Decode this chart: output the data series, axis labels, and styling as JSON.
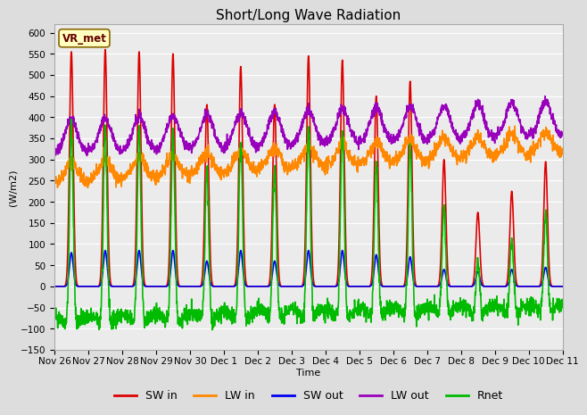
{
  "title": "Short/Long Wave Radiation",
  "ylabel": "(W/m2)",
  "xlabel": "Time",
  "ylim": [
    -150,
    620
  ],
  "yticks": [
    -150,
    -100,
    -50,
    0,
    50,
    100,
    150,
    200,
    250,
    300,
    350,
    400,
    450,
    500,
    550,
    600
  ],
  "xtick_labels": [
    "Nov 26",
    "Nov 27",
    "Nov 28",
    "Nov 29",
    "Nov 30",
    "Dec 1",
    "Dec 2",
    "Dec 3",
    "Dec 4",
    "Dec 5",
    "Dec 6",
    "Dec 7",
    "Dec 8",
    "Dec 9",
    "Dec 10",
    "Dec 11"
  ],
  "station_label": "VR_met",
  "series": {
    "SW_in": {
      "color": "#dd0000",
      "label": "SW in",
      "lw": 1.2
    },
    "LW_in": {
      "color": "#ff8800",
      "label": "LW in",
      "lw": 1.2
    },
    "SW_out": {
      "color": "#0000ee",
      "label": "SW out",
      "lw": 1.2
    },
    "LW_out": {
      "color": "#9900bb",
      "label": "LW out",
      "lw": 1.2
    },
    "Rnet": {
      "color": "#00bb00",
      "label": "Rnet",
      "lw": 1.2
    }
  },
  "fig_bg": "#dddddd",
  "plot_bg": "#ebebeb",
  "title_fontsize": 11,
  "legend_fontsize": 9,
  "tick_fontsize": 7.5,
  "label_fontsize": 8,
  "n_days": 15,
  "peaks_SW": [
    555,
    560,
    555,
    550,
    430,
    520,
    430,
    545,
    535,
    450,
    485,
    300,
    175,
    225,
    295
  ],
  "peaks_SWout": [
    80,
    85,
    85,
    85,
    60,
    85,
    60,
    85,
    85,
    75,
    70,
    40,
    35,
    40,
    45
  ],
  "LW_in_base": 245,
  "LW_in_trend_per_day": 5,
  "LW_in_trend_max": 90,
  "LW_in_daybump": 50,
  "LW_in_noise": 8,
  "LW_out_base": 315,
  "LW_out_trend_per_day": 3,
  "LW_out_trend_max": 50,
  "LW_out_daybump": 80,
  "LW_out_noise": 6,
  "SW_sigma": 0.055,
  "SWout_sigma": 0.055,
  "LW_daybump_sigma": 0.18
}
